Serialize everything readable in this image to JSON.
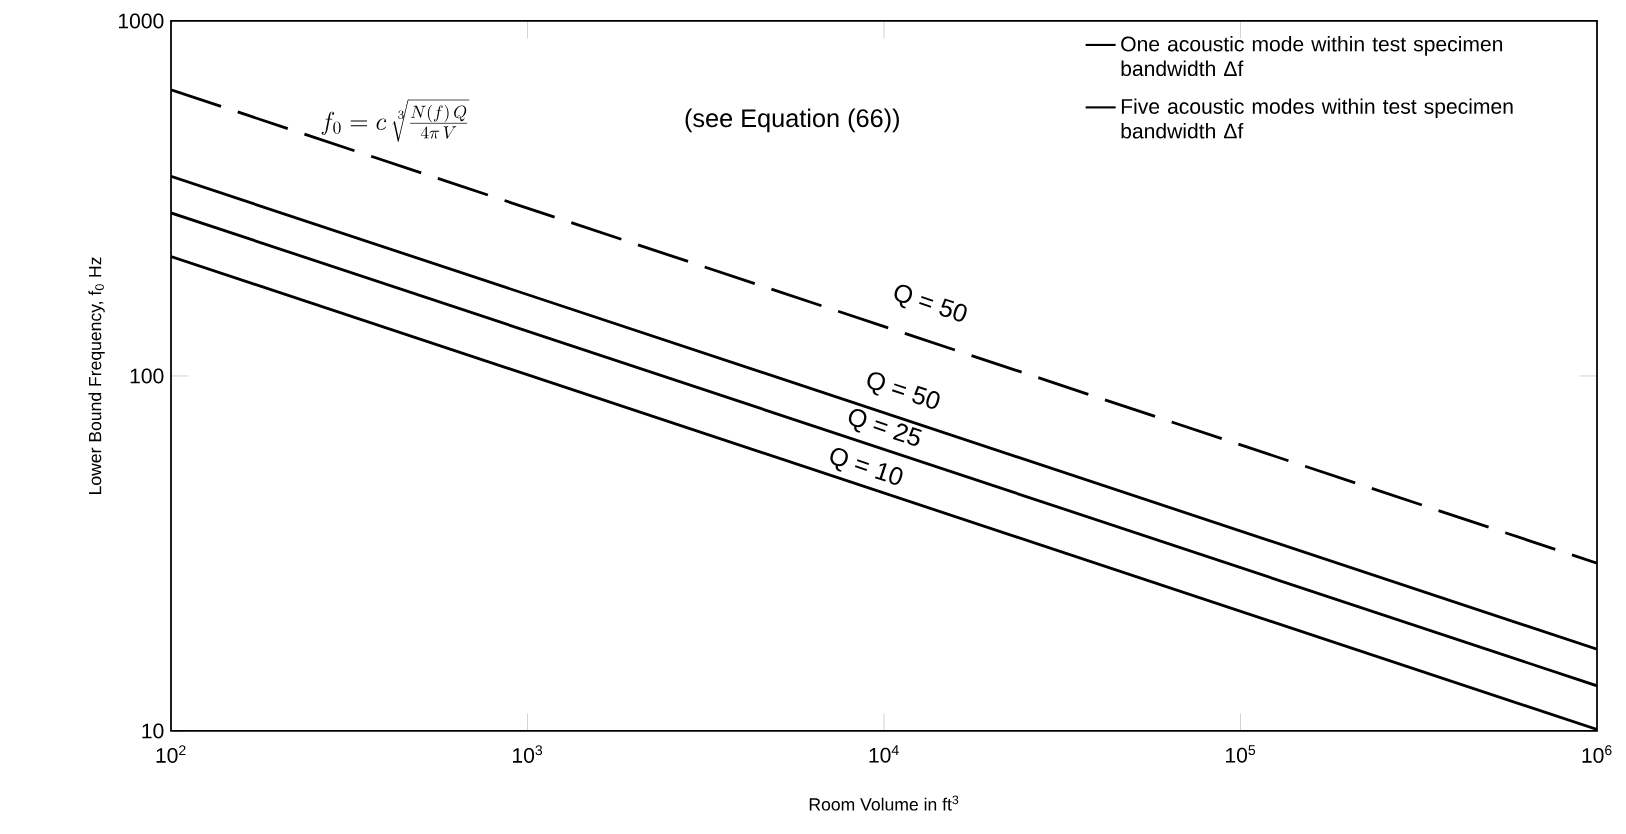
{
  "chart_data": {
    "type": "line",
    "xlabel": "Room Volume in ft$^{3}$",
    "ylabel": "Lower Bound Frequency,  f$_{0}$ Hz",
    "log": "xy",
    "grid": false,
    "legend": "top right",
    "xlim": [
      100,
      1000000
    ],
    "ylim": [
      10,
      1000
    ],
    "xticks": [
      {
        "value": 100,
        "label": "10$^{2}$"
      },
      {
        "value": 1000,
        "label": "10$^{3}$"
      },
      {
        "value": 10000,
        "label": "10$^{4}$"
      },
      {
        "value": 100000,
        "label": "10$^{5}$"
      },
      {
        "value": 1000000,
        "label": "10$^{6}$"
      }
    ],
    "yticks": [
      10,
      100,
      1000
    ],
    "x": [
      100,
      1000000
    ],
    "series": [
      {
        "name": "One acoustic mode within test specimen bandwidth Δf",
        "color": "#000000",
        "line_style": "solid",
        "values": [
          365,
          17
        ]
      },
      {
        "color": "#000000",
        "line_style": "solid",
        "values": [
          288,
          13.4
        ]
      },
      {
        "color": "#000000",
        "line_style": "solid",
        "values": [
          217,
          10.1
        ]
      },
      {
        "name": "Five acoustic modes within test specimen bandwidth Δf",
        "color": "#000000",
        "line_style": "dashed",
        "values": [
          640,
          29.7
        ]
      }
    ],
    "annotations": [
      "f_0 = c\\,\\sqrt[3]{\\frac{N(f)\\,Q}{4\\pi\\,V}}",
      "(see Equation (66))",
      "Q = 50",
      "Q = 50",
      "Q = 25",
      "Q = 10"
    ]
  }
}
